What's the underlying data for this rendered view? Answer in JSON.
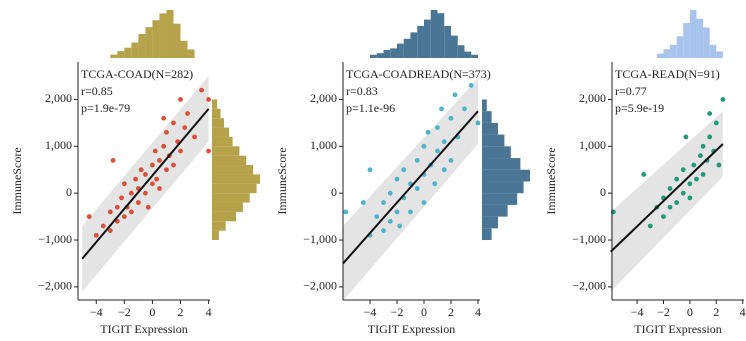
{
  "chart_data": [
    {
      "type": "scatter",
      "annotations": [
        "TCGA-COAD(N=282)",
        "r=0.85",
        "p=1.9e-79"
      ],
      "xlabel": "TIGIT Expression",
      "ylabel": "ImmuneScore",
      "color": "#d94f3a",
      "xlim": [
        -5.3,
        4.1
      ],
      "ylim": [
        -2280,
        2800
      ],
      "xticks": [
        {
          "value": -4,
          "label": "−4"
        },
        {
          "value": -2,
          "label": "−2"
        },
        0,
        2,
        4
      ],
      "yticks": [
        {
          "value": -2000,
          "label": "−2,000"
        },
        {
          "value": -1000,
          "label": "−1,000"
        },
        0,
        {
          "value": 1000,
          "label": "1,000"
        },
        {
          "value": 2000,
          "label": "2,000"
        }
      ],
      "x": [
        -4.5,
        -4,
        -3.5,
        -3,
        -3,
        -2.5,
        -2.5,
        -2.2,
        -2,
        -2,
        -1.8,
        -1.5,
        -1.5,
        -1.2,
        -1,
        -1,
        -0.8,
        -0.5,
        -0.5,
        -0.3,
        0,
        0,
        0.2,
        0.3,
        0.5,
        0.5,
        0.8,
        1,
        1,
        1.2,
        1.5,
        1.5,
        1.8,
        2,
        2,
        2.3,
        2.5,
        3,
        4,
        4,
        3.5,
        0.8,
        -2.8
      ],
      "y": [
        -500,
        -900,
        -700,
        -400,
        -800,
        -300,
        -600,
        -100,
        -500,
        200,
        -300,
        0,
        -400,
        300,
        -200,
        100,
        500,
        0,
        400,
        -300,
        200,
        600,
        900,
        300,
        700,
        100,
        1000,
        500,
        1300,
        800,
        1500,
        600,
        1100,
        2000,
        900,
        1400,
        1700,
        1200,
        2000,
        900,
        2200,
        1600,
        700
      ],
      "fit": {
        "x": [
          -5,
          4
        ],
        "y": [
          -1400,
          1800
        ]
      },
      "band": {
        "x": [
          -5,
          4
        ],
        "lower": [
          -2100,
          1100
        ],
        "upper": [
          -700,
          2500
        ]
      },
      "top_hist": {
        "color": "#b5a24a",
        "bins": [
          -3,
          -2.5,
          -2,
          -1.5,
          -1,
          -0.5,
          0,
          0.5,
          1,
          1.5,
          2,
          2.5,
          3
        ],
        "counts": [
          2,
          4,
          6,
          9,
          14,
          18,
          22,
          26,
          28,
          20,
          10,
          5
        ]
      },
      "right_hist": {
        "color": "#b5a24a",
        "bins": [
          -1000,
          -800,
          -600,
          -400,
          -200,
          0,
          200,
          400,
          600,
          800,
          1000,
          1200,
          1400,
          1600,
          1800,
          2000
        ],
        "counts": [
          4,
          8,
          14,
          18,
          22,
          26,
          28,
          24,
          20,
          16,
          12,
          10,
          7,
          5,
          3
        ]
      }
    },
    {
      "type": "scatter",
      "annotations": [
        "TCGA-COADREAD(N=373)",
        "r=0.83",
        "p=1.1e-96"
      ],
      "xlabel": "TIGIT Expression",
      "ylabel": "ImmuneScore",
      "color": "#4bb3cc",
      "xlim": [
        -6,
        4.15
      ],
      "ylim": [
        -2280,
        2800
      ],
      "xticks": [
        {
          "value": -4,
          "label": "−4"
        },
        {
          "value": -2,
          "label": "−2"
        },
        0,
        2,
        4
      ],
      "yticks": [
        {
          "value": -2000,
          "label": "−2,000"
        },
        {
          "value": -1000,
          "label": "−1,000"
        },
        0,
        {
          "value": 1000,
          "label": "1,000"
        },
        {
          "value": 2000,
          "label": "2,000"
        }
      ],
      "x": [
        -5.8,
        -4.5,
        -4,
        -3.5,
        -3,
        -3,
        -2.5,
        -2.5,
        -2,
        -2,
        -1.8,
        -1.5,
        -1.5,
        -1,
        -1,
        -0.5,
        -0.5,
        0,
        0,
        0,
        0.3,
        0.5,
        0.8,
        1,
        1,
        1.3,
        1.5,
        1.5,
        2,
        2,
        2.3,
        2.5,
        3,
        3.5,
        -4,
        4
      ],
      "y": [
        -400,
        -200,
        -900,
        -500,
        -800,
        -200,
        -600,
        0,
        -400,
        300,
        -700,
        -100,
        500,
        200,
        -400,
        700,
        100,
        400,
        -200,
        1000,
        1300,
        600,
        200,
        900,
        1400,
        1800,
        500,
        1100,
        1600,
        700,
        2100,
        1200,
        1800,
        2300,
        500,
        1500
      ],
      "fit": {
        "x": [
          -6,
          4
        ],
        "y": [
          -1500,
          1750
        ]
      },
      "band": {
        "x": [
          -6,
          4
        ],
        "lower": [
          -2300,
          1050
        ],
        "upper": [
          -700,
          2450
        ]
      },
      "top_hist": {
        "color": "#4a7594",
        "bins": [
          -4,
          -3.5,
          -3,
          -2.5,
          -2,
          -1.5,
          -1,
          -0.5,
          0,
          0.5,
          1,
          1.5,
          2,
          2.5,
          3,
          3.5,
          4
        ],
        "counts": [
          2,
          3,
          5,
          6,
          9,
          12,
          16,
          20,
          24,
          30,
          28,
          20,
          14,
          8,
          4,
          2
        ]
      },
      "right_hist": {
        "color": "#4a7594",
        "bins": [
          -1000,
          -750,
          -500,
          -250,
          0,
          250,
          500,
          750,
          1000,
          1250,
          1500,
          1750,
          2000
        ],
        "counts": [
          6,
          10,
          16,
          22,
          26,
          30,
          24,
          18,
          14,
          10,
          6,
          3
        ]
      }
    },
    {
      "type": "scatter",
      "annotations": [
        "TCGA-READ(N=91)",
        "r=0.77",
        "p=5.9e-19"
      ],
      "xlabel": "TIGIT Expression",
      "ylabel": "ImmuneScore",
      "color": "#1f9a7a",
      "xlim": [
        -5.9,
        4.1
      ],
      "ylim": [
        -2280,
        2800
      ],
      "xticks": [
        {
          "value": -4,
          "label": "−4"
        },
        {
          "value": -2,
          "label": "−2"
        },
        0,
        2,
        4
      ],
      "yticks": [
        {
          "value": -2000,
          "label": "−2,000"
        },
        {
          "value": -1000,
          "label": "−1,000"
        },
        0,
        {
          "value": 1000,
          "label": "1,000"
        },
        {
          "value": 2000,
          "label": "2,000"
        }
      ],
      "x": [
        -5.8,
        -3.5,
        -3,
        -2.5,
        -2,
        -2,
        -1.5,
        -1.5,
        -1,
        -1,
        -0.5,
        -0.5,
        0,
        0,
        0.3,
        0.5,
        0.8,
        1,
        1,
        1.3,
        1.5,
        1.8,
        2,
        2.2,
        2.5,
        1.5,
        -0.3
      ],
      "y": [
        -400,
        400,
        -700,
        -300,
        -500,
        -100,
        -300,
        100,
        -200,
        300,
        0,
        500,
        200,
        -100,
        600,
        300,
        800,
        400,
        1000,
        700,
        1200,
        900,
        1500,
        600,
        2000,
        1700,
        1200
      ],
      "fit": {
        "x": [
          -6,
          2.5
        ],
        "y": [
          -1250,
          1050
        ]
      },
      "band": {
        "x": [
          -6,
          2.5
        ],
        "lower": [
          -2100,
          350
        ],
        "upper": [
          -400,
          1750
        ]
      },
      "top_hist": {
        "color": "#a8c4ec",
        "bins": [
          -2.5,
          -2,
          -1.5,
          -1,
          -0.5,
          0,
          0.5,
          1,
          1.5,
          2,
          2.5
        ],
        "counts": [
          2,
          4,
          6,
          10,
          16,
          22,
          18,
          14,
          6,
          3
        ]
      }
    }
  ]
}
